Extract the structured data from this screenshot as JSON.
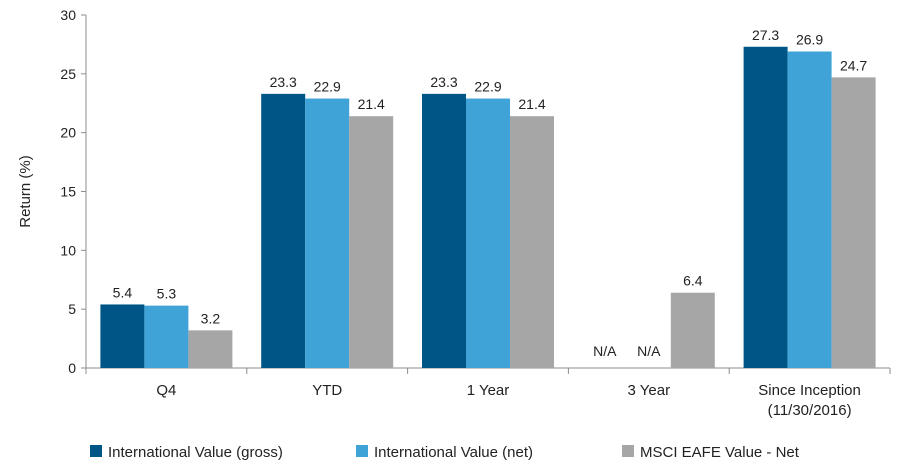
{
  "chart_data": {
    "type": "bar",
    "title": "",
    "xlabel": "",
    "ylabel": "Return (%)",
    "ylim": [
      0,
      30
    ],
    "yticks": [
      0,
      5,
      10,
      15,
      20,
      25,
      30
    ],
    "grid": false,
    "legend_position": "bottom",
    "categories": [
      [
        "Q4"
      ],
      [
        "YTD"
      ],
      [
        "1 Year"
      ],
      [
        "3 Year"
      ],
      [
        "Since Inception",
        "(11/30/2016)"
      ]
    ],
    "series": [
      {
        "name": "International Value (gross)",
        "color": "#005587",
        "values": [
          5.4,
          23.3,
          23.3,
          null,
          27.3
        ],
        "labels": [
          "5.4",
          "23.3",
          "23.3",
          "N/A",
          "27.3"
        ]
      },
      {
        "name": "International Value (net)",
        "color": "#3fa3d7",
        "values": [
          5.3,
          22.9,
          22.9,
          null,
          26.9
        ],
        "labels": [
          "5.3",
          "22.9",
          "22.9",
          "N/A",
          "26.9"
        ]
      },
      {
        "name": "MSCI EAFE Value - Net",
        "color": "#a6a6a6",
        "values": [
          3.2,
          21.4,
          21.4,
          6.4,
          24.7
        ],
        "labels": [
          "3.2",
          "21.4",
          "21.4",
          "6.4",
          "24.7"
        ]
      }
    ]
  }
}
